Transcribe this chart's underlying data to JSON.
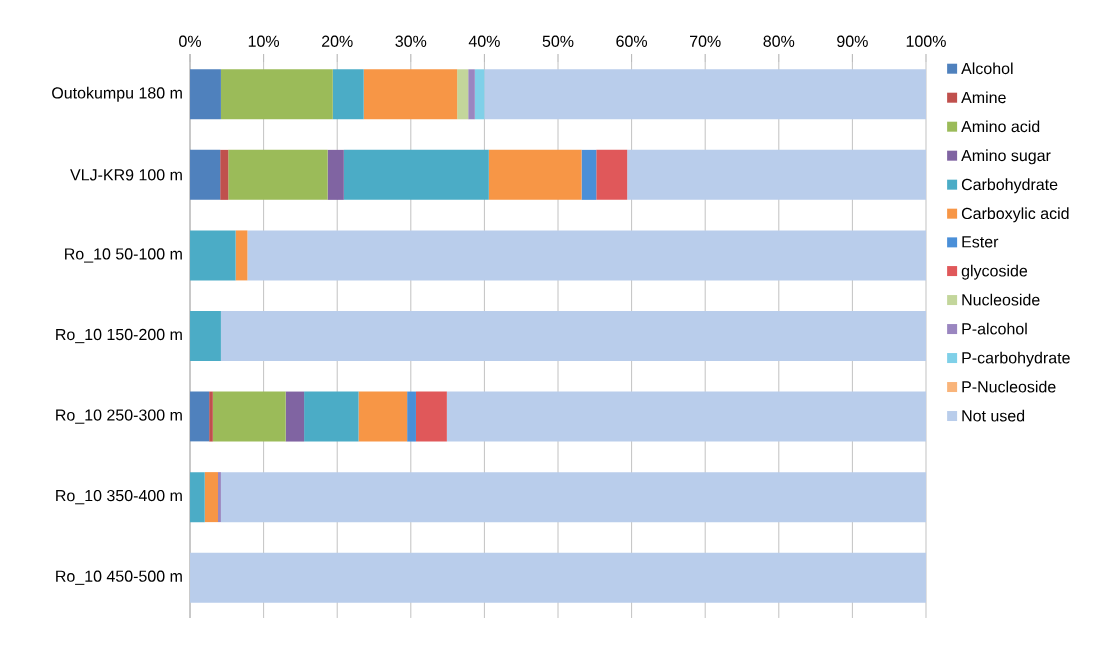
{
  "chart_data": {
    "type": "bar",
    "orientation": "horizontal",
    "stacked": true,
    "categories": [
      "Outokumpu 180 m",
      "VLJ-KR9 100 m",
      "Ro_10 50-100 m",
      "Ro_10 150-200 m",
      "Ro_10 250-300 m",
      "Ro_10 350-400 m",
      "Ro_10 450-500 m"
    ],
    "series": [
      {
        "name": "Alcohol",
        "color": "#4f81bd",
        "values": [
          4.2,
          4.1,
          0,
          0,
          2.6,
          0,
          0
        ]
      },
      {
        "name": "Amine",
        "color": "#c0504d",
        "values": [
          0,
          1.1,
          0,
          0,
          0.5,
          0,
          0
        ]
      },
      {
        "name": "Amino acid",
        "color": "#9bbb59",
        "values": [
          15.2,
          13.5,
          0,
          0,
          9.9,
          0,
          0
        ]
      },
      {
        "name": "Amino sugar",
        "color": "#8064a2",
        "values": [
          0,
          2.2,
          0,
          0,
          2.5,
          0,
          0
        ]
      },
      {
        "name": "Carbohydrate",
        "color": "#4bacc6",
        "values": [
          4.2,
          19.7,
          6.2,
          4.2,
          7.4,
          2.0,
          0
        ]
      },
      {
        "name": "Carboxylic acid",
        "color": "#f79646",
        "values": [
          12.7,
          12.6,
          1.6,
          0,
          6.6,
          1.8,
          0
        ]
      },
      {
        "name": "Ester",
        "color": "#4a8fd8",
        "values": [
          0,
          2.0,
          0,
          0,
          1.2,
          0,
          0
        ]
      },
      {
        "name": "glycoside",
        "color": "#e0585a",
        "values": [
          0,
          4.2,
          0,
          0,
          4.2,
          0,
          0
        ]
      },
      {
        "name": "Nucleoside",
        "color": "#c3d69b",
        "values": [
          1.5,
          0,
          0,
          0,
          0,
          0,
          0
        ]
      },
      {
        "name": "P-alcohol",
        "color": "#9a86c0",
        "values": [
          0.9,
          0,
          0,
          0,
          0,
          0.4,
          0
        ]
      },
      {
        "name": "P-carbohydrate",
        "color": "#7fd0e8",
        "values": [
          1.3,
          0,
          0,
          0,
          0,
          0,
          0
        ]
      },
      {
        "name": "P-Nucleoside",
        "color": "#f9b47a",
        "values": [
          0,
          0,
          0,
          0,
          0,
          0,
          0
        ]
      },
      {
        "name": "Not used",
        "color": "#b9cdeb",
        "values": [
          60.0,
          40.6,
          92.2,
          95.8,
          65.1,
          95.8,
          100
        ]
      }
    ],
    "xlim": [
      0,
      100
    ],
    "xticks": [
      {
        "value": 0,
        "label": "0%"
      },
      {
        "value": 10,
        "label": "10%"
      },
      {
        "value": 20,
        "label": "20%"
      },
      {
        "value": 30,
        "label": "30%"
      },
      {
        "value": 40,
        "label": "40%"
      },
      {
        "value": 50,
        "label": "50%"
      },
      {
        "value": 60,
        "label": "60%"
      },
      {
        "value": 70,
        "label": "70%"
      },
      {
        "value": 80,
        "label": "80%"
      },
      {
        "value": 90,
        "label": "90%"
      },
      {
        "value": 100,
        "label": "100%"
      }
    ],
    "grid": "x",
    "legend": "right"
  }
}
